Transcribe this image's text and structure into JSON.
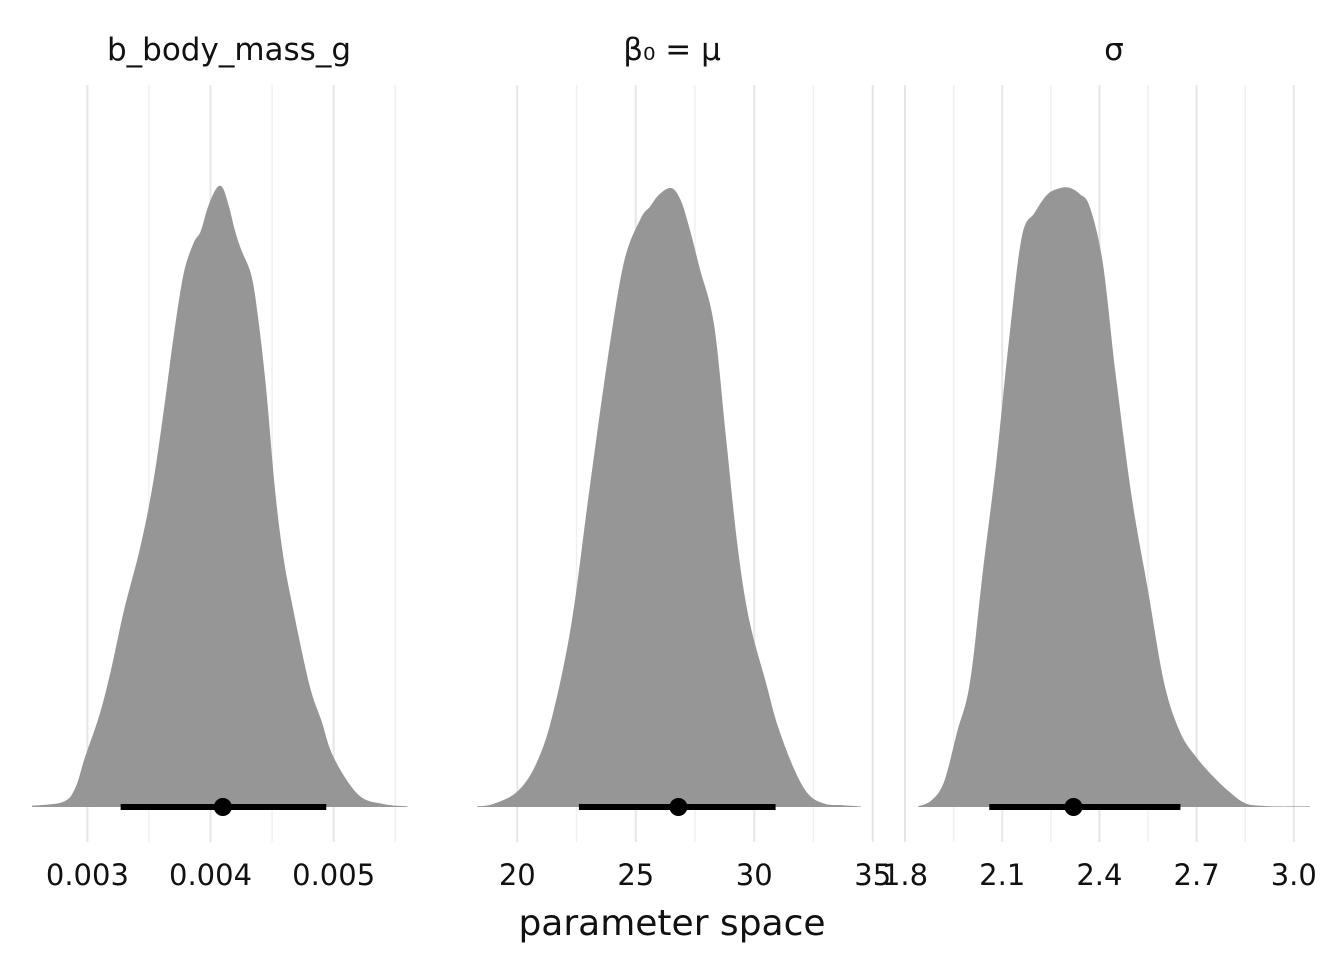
{
  "chart_data": {
    "type": "area",
    "xlabel": "parameter space",
    "ylabel": "",
    "grid": true,
    "legend": "none",
    "colors": {
      "density": "#969696",
      "interval": "#000000",
      "grid": "#e6e6e6"
    },
    "panels": [
      {
        "title": "b_body_mass_g",
        "xlim": [
          0.00255,
          0.00575
        ],
        "ticks": [
          0.003,
          0.004,
          0.005
        ],
        "tick_labels": [
          "0.003",
          "0.004",
          "0.005"
        ],
        "minor_ticks": [
          0.0025,
          0.0035,
          0.0045,
          0.0055
        ],
        "interval": {
          "lower": 0.00327,
          "point": 0.0041,
          "upper": 0.00494
        },
        "density": {
          "x": [
            0.00255,
            0.0028,
            0.0029,
            0.00298,
            0.0031,
            0.00319,
            0.0033,
            0.00343,
            0.00353,
            0.00362,
            0.0037,
            0.00378,
            0.00386,
            0.00392,
            0.00398,
            0.00405,
            0.0041,
            0.00415,
            0.0042,
            0.00425,
            0.00433,
            0.00438,
            0.00445,
            0.00452,
            0.00458,
            0.00465,
            0.0048,
            0.0049,
            0.005,
            0.0052,
            0.0054,
            0.0056
          ],
          "y": [
            0.002,
            0.008,
            0.03,
            0.08,
            0.15,
            0.22,
            0.32,
            0.42,
            0.52,
            0.64,
            0.76,
            0.86,
            0.91,
            0.93,
            0.97,
            1.0,
            1.0,
            0.97,
            0.93,
            0.9,
            0.86,
            0.8,
            0.68,
            0.52,
            0.42,
            0.34,
            0.2,
            0.14,
            0.08,
            0.02,
            0.005,
            0.001
          ]
        }
      },
      {
        "title": "β₀ = μ",
        "xlim": [
          18.3,
          34.8
        ],
        "ticks": [
          20,
          25,
          30,
          35
        ],
        "tick_labels": [
          "20",
          "25",
          "30",
          "35"
        ],
        "minor_ticks": [
          17.5,
          22.5,
          27.5,
          32.5
        ],
        "interval": {
          "lower": 22.6,
          "point": 26.8,
          "upper": 30.9
        },
        "density": {
          "x": [
            18.3,
            19.0,
            20.0,
            20.8,
            21.5,
            22.3,
            23.0,
            23.8,
            24.5,
            25.2,
            25.6,
            26.0,
            26.5,
            26.9,
            27.3,
            27.7,
            28.3,
            28.8,
            29.3,
            29.8,
            30.5,
            31.0,
            31.7,
            32.3,
            33.0,
            33.7,
            34.5
          ],
          "y": [
            0.001,
            0.005,
            0.025,
            0.07,
            0.15,
            0.3,
            0.5,
            0.72,
            0.88,
            0.95,
            0.97,
            0.99,
            1.0,
            0.98,
            0.93,
            0.87,
            0.78,
            0.6,
            0.42,
            0.3,
            0.2,
            0.13,
            0.06,
            0.02,
            0.005,
            0.003,
            0.001
          ]
        }
      },
      {
        "title": "σ",
        "xlim": [
          1.84,
          3.05
        ],
        "ticks": [
          1.8,
          2.1,
          2.4,
          2.7,
          3.0
        ],
        "tick_labels": [
          "1.8",
          "2.1",
          "2.4",
          "2.7",
          "3.0"
        ],
        "minor_ticks": [
          1.95,
          2.25,
          2.55,
          2.85
        ],
        "interval": {
          "lower": 2.06,
          "point": 2.32,
          "upper": 2.65
        },
        "density": {
          "x": [
            1.84,
            1.88,
            1.92,
            1.96,
            2.0,
            2.04,
            2.08,
            2.12,
            2.16,
            2.2,
            2.24,
            2.28,
            2.31,
            2.34,
            2.37,
            2.41,
            2.45,
            2.5,
            2.55,
            2.6,
            2.65,
            2.7,
            2.75,
            2.8,
            2.85,
            2.9,
            2.95,
            3.0,
            3.05
          ],
          "y": [
            0.001,
            0.01,
            0.04,
            0.12,
            0.2,
            0.38,
            0.55,
            0.75,
            0.92,
            0.96,
            0.99,
            1.0,
            1.0,
            0.99,
            0.97,
            0.88,
            0.7,
            0.5,
            0.35,
            0.2,
            0.12,
            0.08,
            0.05,
            0.025,
            0.006,
            0.002,
            0.001,
            0.001,
            0.001
          ]
        }
      }
    ]
  }
}
